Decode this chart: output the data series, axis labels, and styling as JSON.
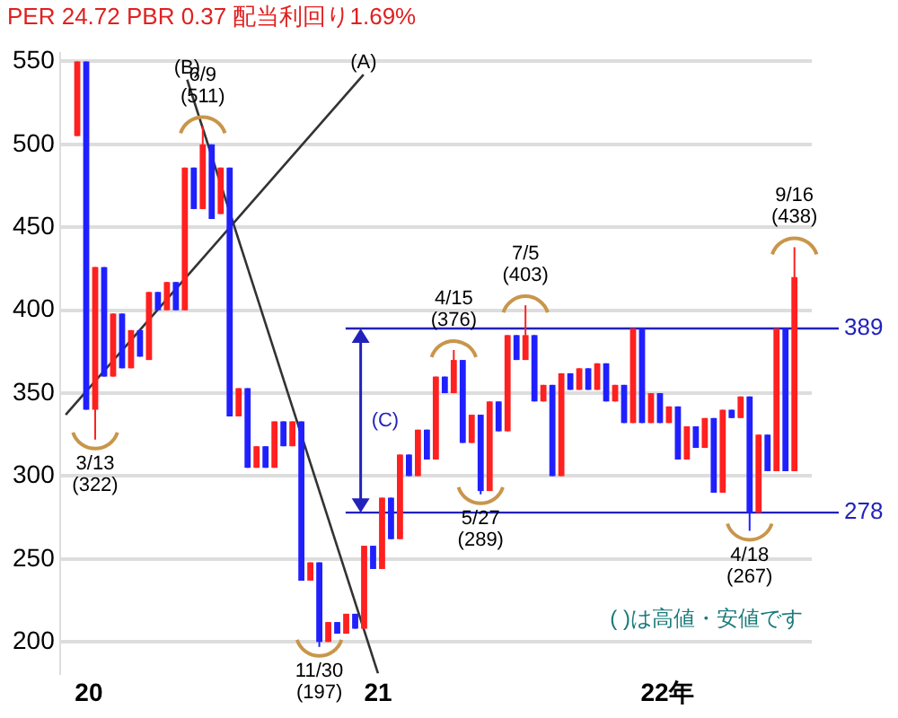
{
  "chart_data": {
    "type": "candlestick",
    "title": "PER 24.72 PBR 0.37 配当利回り1.69%",
    "x": [
      19.96,
      19.991,
      20.022,
      20.053,
      20.084,
      20.115,
      20.146,
      20.177,
      20.208,
      20.239,
      20.27,
      20.301,
      20.332,
      20.363,
      20.394,
      20.425,
      20.456,
      20.487,
      20.518,
      20.549,
      20.58,
      20.611,
      20.642,
      20.673,
      20.704,
      20.735,
      20.766,
      20.797,
      20.828,
      20.859,
      20.89,
      20.921,
      20.952,
      20.983,
      21.014,
      21.045,
      21.076,
      21.107,
      21.138,
      21.169,
      21.2,
      21.231,
      21.262,
      21.293,
      21.324,
      21.355,
      21.386,
      21.417,
      21.448,
      21.479,
      21.51,
      21.541,
      21.572,
      21.603,
      21.634,
      21.665,
      21.696,
      21.727,
      21.758,
      21.789,
      21.82,
      21.851,
      21.882,
      21.913,
      21.944,
      21.975,
      22.006,
      22.037,
      22.068,
      22.099,
      22.13,
      22.161,
      22.192,
      22.223,
      22.254,
      22.285,
      22.316,
      22.347,
      22.378,
      22.409,
      22.44
    ],
    "ohlc": [
      [
        505,
        550,
        505,
        550
      ],
      [
        550,
        550,
        340,
        340
      ],
      [
        340,
        426,
        322,
        426
      ],
      [
        426,
        426,
        360,
        360
      ],
      [
        360,
        398,
        360,
        398
      ],
      [
        398,
        398,
        365,
        365
      ],
      [
        365,
        388,
        365,
        388
      ],
      [
        388,
        388,
        372,
        372
      ],
      [
        370,
        411,
        370,
        411
      ],
      [
        411,
        411,
        400,
        400
      ],
      [
        400,
        417,
        400,
        417
      ],
      [
        417,
        417,
        400,
        400
      ],
      [
        400,
        486,
        400,
        486
      ],
      [
        486,
        486,
        461,
        461
      ],
      [
        461,
        511,
        461,
        500
      ],
      [
        500,
        500,
        455,
        455
      ],
      [
        458,
        486,
        458,
        486
      ],
      [
        486,
        486,
        336,
        336
      ],
      [
        336,
        353,
        336,
        353
      ],
      [
        353,
        353,
        305,
        305
      ],
      [
        305,
        318,
        305,
        318
      ],
      [
        318,
        318,
        305,
        305
      ],
      [
        305,
        333,
        305,
        333
      ],
      [
        333,
        333,
        318,
        318
      ],
      [
        318,
        333,
        318,
        333
      ],
      [
        333,
        333,
        237,
        237
      ],
      [
        237,
        248,
        237,
        248
      ],
      [
        248,
        248,
        197,
        200
      ],
      [
        200,
        212,
        200,
        212
      ],
      [
        212,
        212,
        205,
        205
      ],
      [
        205,
        217,
        205,
        217
      ],
      [
        217,
        217,
        208,
        208
      ],
      [
        208,
        258,
        208,
        258
      ],
      [
        258,
        258,
        244,
        244
      ],
      [
        244,
        287,
        244,
        287
      ],
      [
        287,
        287,
        262,
        262
      ],
      [
        262,
        313,
        262,
        313
      ],
      [
        313,
        313,
        300,
        300
      ],
      [
        300,
        328,
        300,
        328
      ],
      [
        328,
        328,
        310,
        310
      ],
      [
        310,
        360,
        310,
        360
      ],
      [
        360,
        360,
        350,
        350
      ],
      [
        350,
        376,
        350,
        370
      ],
      [
        370,
        370,
        320,
        320
      ],
      [
        320,
        337,
        320,
        337
      ],
      [
        337,
        337,
        289,
        291
      ],
      [
        291,
        345,
        291,
        345
      ],
      [
        345,
        345,
        327,
        327
      ],
      [
        327,
        385,
        327,
        385
      ],
      [
        385,
        385,
        370,
        370
      ],
      [
        370,
        403,
        370,
        385
      ],
      [
        385,
        385,
        345,
        345
      ],
      [
        345,
        355,
        345,
        355
      ],
      [
        355,
        355,
        300,
        300
      ],
      [
        300,
        362,
        300,
        362
      ],
      [
        362,
        362,
        352,
        352
      ],
      [
        352,
        365,
        352,
        365
      ],
      [
        365,
        365,
        352,
        352
      ],
      [
        352,
        368,
        352,
        368
      ],
      [
        368,
        368,
        345,
        345
      ],
      [
        345,
        355,
        345,
        355
      ],
      [
        355,
        355,
        332,
        332
      ],
      [
        332,
        389,
        332,
        389
      ],
      [
        389,
        389,
        332,
        332
      ],
      [
        332,
        350,
        332,
        350
      ],
      [
        350,
        350,
        332,
        332
      ],
      [
        332,
        342,
        332,
        342
      ],
      [
        342,
        342,
        310,
        310
      ],
      [
        310,
        330,
        310,
        330
      ],
      [
        330,
        330,
        317,
        317
      ],
      [
        317,
        335,
        317,
        335
      ],
      [
        335,
        335,
        290,
        290
      ],
      [
        290,
        340,
        290,
        340
      ],
      [
        340,
        340,
        335,
        335
      ],
      [
        335,
        348,
        335,
        348
      ],
      [
        348,
        348,
        267,
        278
      ],
      [
        278,
        325,
        278,
        325
      ],
      [
        325,
        325,
        303,
        303
      ],
      [
        303,
        389,
        303,
        389
      ],
      [
        389,
        389,
        303,
        303
      ],
      [
        303,
        438,
        303,
        420
      ]
    ],
    "colors": [
      "#ff2020",
      "#2020ff",
      "#ff2020",
      "#2020ff",
      "#ff2020",
      "#2020ff",
      "#ff2020",
      "#2020ff",
      "#ff2020",
      "#2020ff",
      "#ff2020",
      "#2020ff",
      "#ff2020",
      "#2020ff",
      "#ff2020",
      "#2020ff",
      "#ff2020",
      "#2020ff",
      "#ff2020",
      "#2020ff",
      "#ff2020",
      "#2020ff",
      "#ff2020",
      "#2020ff",
      "#ff2020",
      "#2020ff",
      "#ff2020",
      "#2020ff",
      "#ff2020",
      "#2020ff",
      "#ff2020",
      "#2020ff",
      "#ff2020",
      "#2020ff",
      "#ff2020",
      "#2020ff",
      "#ff2020",
      "#2020ff",
      "#ff2020",
      "#2020ff",
      "#ff2020",
      "#2020ff",
      "#ff2020",
      "#2020ff",
      "#ff2020",
      "#2020ff",
      "#ff2020",
      "#2020ff",
      "#ff2020",
      "#2020ff",
      "#ff2020",
      "#2020ff",
      "#ff2020",
      "#2020ff",
      "#ff2020",
      "#2020ff",
      "#ff2020",
      "#2020ff",
      "#ff2020",
      "#2020ff",
      "#ff2020",
      "#2020ff",
      "#ff2020",
      "#2020ff",
      "#ff2020",
      "#2020ff",
      "#ff2020",
      "#2020ff",
      "#ff2020",
      "#2020ff",
      "#ff2020",
      "#2020ff",
      "#ff2020",
      "#2020ff",
      "#ff2020",
      "#2020ff",
      "#ff2020",
      "#2020ff",
      "#ff2020",
      "#2020ff",
      "#ff2020"
    ],
    "series": [
      {
        "name": "(A)",
        "type": "line",
        "color": "#333333",
        "x": [
          19.92,
          20.95
        ],
        "values": [
          337,
          542
        ]
      },
      {
        "name": "(B)",
        "type": "line",
        "color": "#333333",
        "x": [
          20.34,
          21.0
        ],
        "values": [
          539,
          181
        ]
      }
    ],
    "xlim": [
      19.9,
      22.5
    ],
    "xticks": [
      20,
      21,
      {
        "value": 22,
        "label": "22年"
      }
    ],
    "ylim": [
      181,
      555
    ],
    "yticks": [
      200,
      250,
      300,
      350,
      400,
      450,
      500,
      550
    ],
    "grid": "y",
    "legend": false,
    "ref_lines": [
      {
        "axis": "y",
        "value": 389,
        "label": "389",
        "color": "#2222bb"
      },
      {
        "axis": "y",
        "value": 278,
        "label": "278",
        "color": "#2222bb"
      }
    ],
    "annotations": [
      "(C)",
      {
        "text": "3/13\n(322)",
        "x": 20.022,
        "y": 322
      },
      {
        "text": "6/9\n(511)",
        "x": 20.394,
        "y": 511
      },
      {
        "text": "11/30\n(197)",
        "x": 20.797,
        "y": 197
      },
      {
        "text": "4/15\n(376)",
        "x": 21.262,
        "y": 376
      },
      {
        "text": "5/27\n(289)",
        "x": 21.355,
        "y": 289
      },
      {
        "text": "7/5\n(403)",
        "x": 21.51,
        "y": 403
      },
      {
        "text": "4/18\n(267)",
        "x": 22.285,
        "y": 267
      },
      {
        "text": "9/16\n(438)",
        "x": 22.44,
        "y": 438
      },
      "( )は高値・安値です"
    ]
  }
}
